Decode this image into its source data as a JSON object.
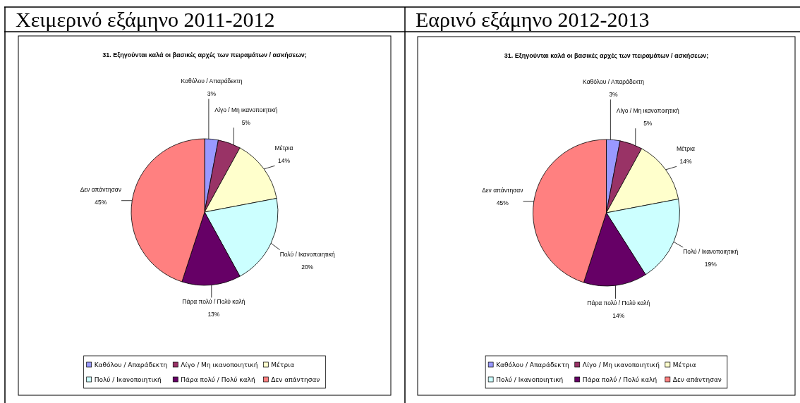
{
  "chart_data": [
    {
      "type": "pie",
      "title": "Χειμερινό εξάμηνο 2011-2012",
      "subtitle": "31. Εξηγούνται καλά οι βασικές αρχές των πειραμάτων / ασκήσεων;",
      "categories": [
        "Καθόλου / Απαράδεκτη",
        "Λίγο / Μη ικανοποιητική",
        "Μέτρια",
        "Πολύ / Ικανοποιητική",
        "Πάρα πολύ / Πολύ καλή",
        "Δεν απάντησαν"
      ],
      "values": [
        3,
        5,
        14,
        20,
        13,
        45
      ],
      "value_labels": [
        "3%",
        "5%",
        "14%",
        "20%",
        "13%",
        "45%"
      ],
      "colors": [
        "#9999ff",
        "#993366",
        "#ffffcc",
        "#ccffff",
        "#660066",
        "#ff8080"
      ],
      "legend": "bottom"
    },
    {
      "type": "pie",
      "title": "Εαρινό εξάμηνο 2012-2013",
      "subtitle": "31. Εξηγούνται καλά οι βασικές αρχές των πειραμάτων / ασκήσεων;",
      "categories": [
        "Καθόλου / Απαράδεκτη",
        "Λίγο / Μη ικανοποιητική",
        "Μέτρια",
        "Πολύ / Ικανοποιητική",
        "Πάρα πολύ / Πολύ καλή",
        "Δεν απάντησαν"
      ],
      "values": [
        3,
        5,
        14,
        19,
        14,
        45
      ],
      "value_labels": [
        "3%",
        "5%",
        "14%",
        "19%",
        "14%",
        "45%"
      ],
      "colors": [
        "#9999ff",
        "#993366",
        "#ffffcc",
        "#ccffff",
        "#660066",
        "#ff8080"
      ],
      "legend": "bottom"
    }
  ]
}
